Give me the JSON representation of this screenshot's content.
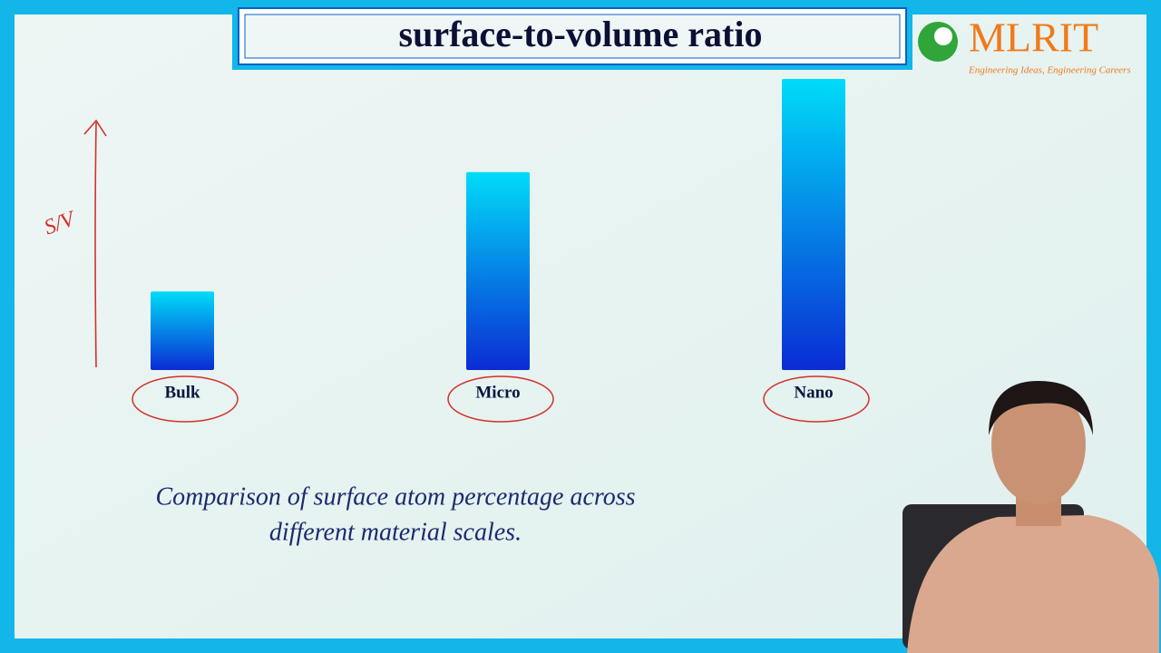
{
  "chart_data": {
    "type": "bar",
    "title": "surface-to-volume ratio",
    "categories": [
      "Bulk",
      "Micro",
      "Nano"
    ],
    "values": [
      27,
      68,
      100
    ],
    "colors": [
      "#00dcf8",
      "#0a2cd4"
    ],
    "annotation": "S/V",
    "caption": [
      "Comparison of surface atom percentage across",
      "different material scales."
    ]
  },
  "logo": {
    "name": "MLRIT",
    "tagline": "Engineering Ideas, Engineering Careers"
  }
}
